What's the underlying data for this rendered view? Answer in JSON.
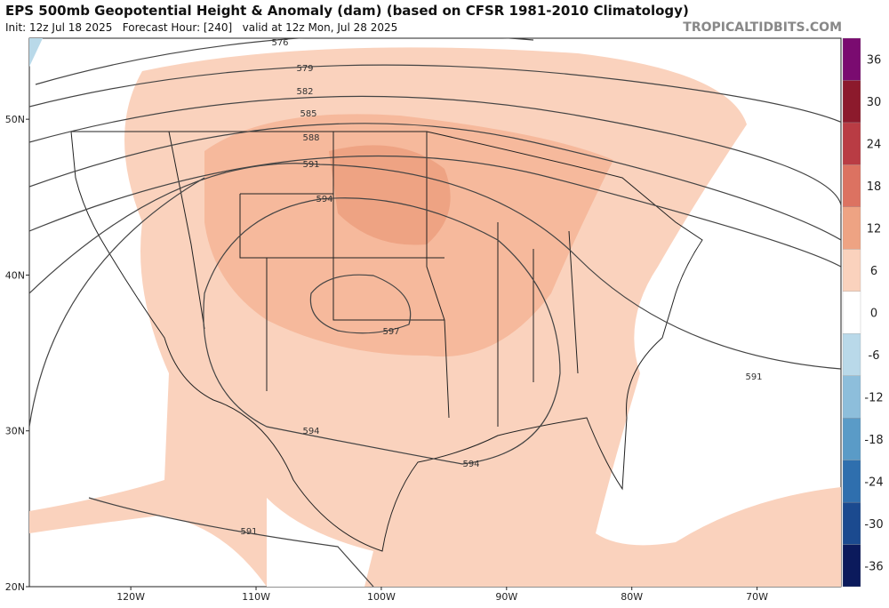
{
  "header": {
    "title": "EPS 500mb Geopotential Height & Anomaly (dam) (based on CFSR 1981-2010 Climatology)",
    "subtitle": "Init: 12z Jul 18 2025   Forecast Hour: [240]   valid at 12z Mon, Jul 28 2025",
    "brand": "TROPICALTIDBITS.COM"
  },
  "map": {
    "lat_lim": [
      20,
      55.2
    ],
    "lon_lim": [
      -128.1,
      -63.3
    ],
    "lat_ticks": [
      {
        "value": 50,
        "label": "50N"
      },
      {
        "value": 40,
        "label": "40N"
      },
      {
        "value": 30,
        "label": "30N"
      },
      {
        "value": 20,
        "label": "20N"
      }
    ],
    "lon_ticks": [
      {
        "value": -120,
        "label": "120W"
      },
      {
        "value": -110,
        "label": "110W"
      },
      {
        "value": -100,
        "label": "100W"
      },
      {
        "value": -90,
        "label": "90W"
      },
      {
        "value": -80,
        "label": "80W"
      },
      {
        "value": -70,
        "label": "70W"
      }
    ],
    "contour_labels": [
      576,
      579,
      582,
      585,
      588,
      591,
      594,
      597,
      594,
      594,
      591,
      591
    ]
  },
  "colorbar": {
    "lim": [
      -39,
      39
    ],
    "ticks": [
      -36,
      -30,
      -24,
      -18,
      -12,
      -6,
      0,
      6,
      12,
      18,
      24,
      30,
      36
    ],
    "colors": [
      "#0b1a5c",
      "#1b4a8f",
      "#2f6fae",
      "#5a9bc7",
      "#8dbedb",
      "#b9d9e9",
      "#ffffff",
      "#fad2bd",
      "#eea383",
      "#dc7261",
      "#b93c44",
      "#8c1a2c",
      "#7a0b70"
    ]
  }
}
